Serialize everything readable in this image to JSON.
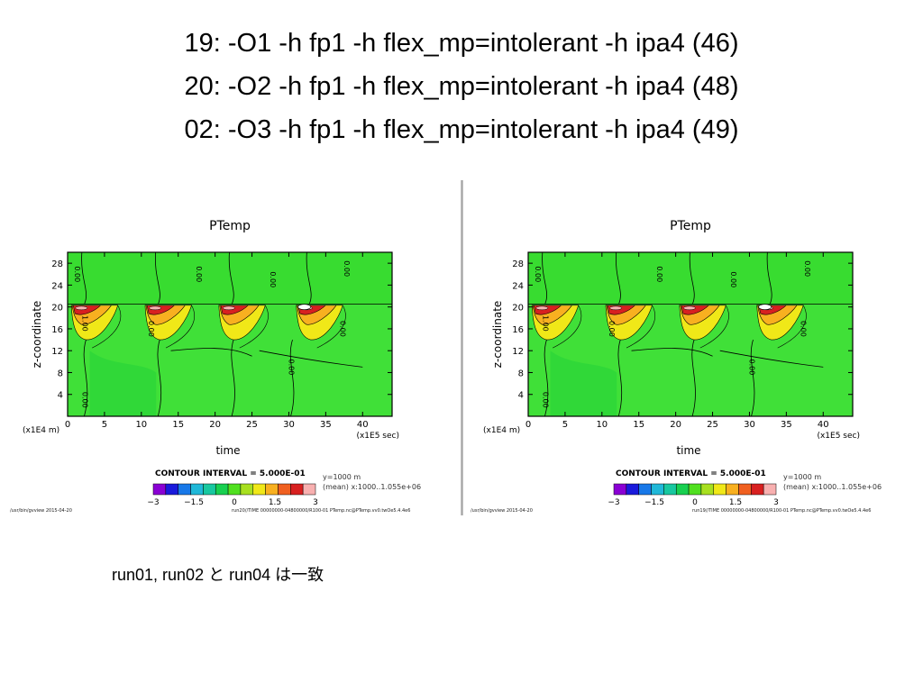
{
  "slide": {
    "title_lines": [
      "19:  -O1 -h fp1 -h flex_mp=intolerant -h ipa4 (46)",
      "20: -O2 -h fp1 -h flex_mp=intolerant -h ipa4 (48)",
      "02: -O3 -h fp1 -h flex_mp=intolerant -h ipa4 (49)"
    ],
    "note": "run01, run02 と run04 は一致"
  },
  "colors": {
    "palette": [
      "#8a00d4",
      "#1a1adc",
      "#1878e8",
      "#20b8d8",
      "#18c8a0",
      "#18d050",
      "#50e020",
      "#a8e020",
      "#f0e818",
      "#f8b020",
      "#f06020",
      "#d82020",
      "#f8b0b0"
    ],
    "background_field": "#40e038",
    "contour_line": "#000000"
  },
  "chart_data": [
    {
      "type": "heatmap",
      "title": "PTemp",
      "xlabel": "time",
      "ylabel": "z-coordinate",
      "x_unit": "(x1E5 sec)",
      "y_unit": "(x1E4 m)",
      "xlim": [
        0,
        44
      ],
      "ylim": [
        0,
        30
      ],
      "x_ticks": [
        0,
        5,
        10,
        15,
        20,
        25,
        30,
        35,
        40
      ],
      "y_ticks": [
        4,
        8,
        12,
        16,
        20,
        24,
        28
      ],
      "contour_labels": [
        {
          "text": "0.00",
          "x": 1,
          "y": 26
        },
        {
          "text": "0.00",
          "x": 17.5,
          "y": 26
        },
        {
          "text": "0.00",
          "x": 27.5,
          "y": 25
        },
        {
          "text": "0.00",
          "x": 37.5,
          "y": 27
        },
        {
          "text": "1.00",
          "x": 2,
          "y": 17
        },
        {
          "text": "0.00",
          "x": 11,
          "y": 16
        },
        {
          "text": "0.00",
          "x": 30,
          "y": 9
        },
        {
          "text": "0.00",
          "x": 37,
          "y": 16
        },
        {
          "text": "0.00",
          "x": 2,
          "y": 3
        }
      ],
      "hot_spots_x": [
        1,
        11,
        21,
        31.5
      ],
      "contour_interval": "CONTOUR INTERVAL = 5.000E-01",
      "colorbar_ticks": [
        "−3",
        "−1.5",
        "0",
        "1.5",
        "3"
      ],
      "colorbar_range": [
        -3,
        3
      ],
      "info_lines": [
        "y=1000  m",
        "(mean) x:1000..1.055e+06"
      ],
      "footer_left": "/usr/bin/gvview   2015-04-20",
      "footer_right": "run20//TIME  00000000-04800000/R100-01  PTemp.nc@PTemp.vv0.twOe5.4.4e6"
    },
    {
      "type": "heatmap",
      "title": "PTemp",
      "xlabel": "time",
      "ylabel": "z-coordinate",
      "x_unit": "(x1E5 sec)",
      "y_unit": "(x1E4 m)",
      "xlim": [
        0,
        44
      ],
      "ylim": [
        0,
        30
      ],
      "x_ticks": [
        0,
        5,
        10,
        15,
        20,
        25,
        30,
        35,
        40
      ],
      "y_ticks": [
        4,
        8,
        12,
        16,
        20,
        24,
        28
      ],
      "contour_labels": [
        {
          "text": "0.00",
          "x": 1,
          "y": 26
        },
        {
          "text": "0.00",
          "x": 17.5,
          "y": 26
        },
        {
          "text": "0.00",
          "x": 27.5,
          "y": 25
        },
        {
          "text": "0.00",
          "x": 37.5,
          "y": 27
        },
        {
          "text": "1.00",
          "x": 2,
          "y": 17
        },
        {
          "text": "0.00",
          "x": 11,
          "y": 16
        },
        {
          "text": "0.00",
          "x": 30,
          "y": 9
        },
        {
          "text": "0.00",
          "x": 37,
          "y": 16
        },
        {
          "text": "0.00",
          "x": 2,
          "y": 3
        }
      ],
      "hot_spots_x": [
        1,
        11,
        21,
        31.5
      ],
      "contour_interval": "CONTOUR INTERVAL = 5.000E-01",
      "colorbar_ticks": [
        "−3",
        "−1.5",
        "0",
        "1.5",
        "3"
      ],
      "colorbar_range": [
        -3,
        3
      ],
      "info_lines": [
        "y=1000  m",
        "(mean) x:1000..1.055e+06"
      ],
      "footer_left": "/usr/bin/gvview   2015-04-20",
      "footer_right": "run19//TIME  00000000-04800000/R100-01  PTemp.nc@PTemp.vv0.twOe5.4.4e6"
    }
  ]
}
